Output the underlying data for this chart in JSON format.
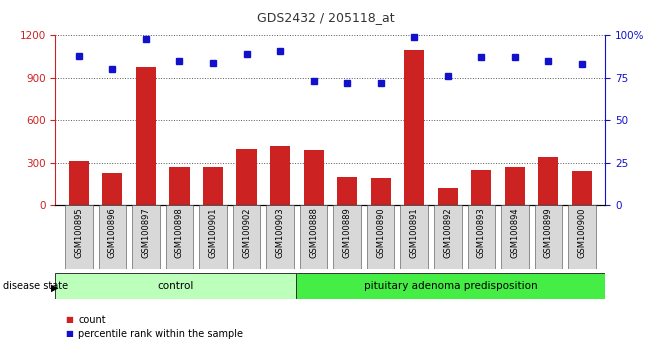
{
  "title": "GDS2432 / 205118_at",
  "samples": [
    "GSM100895",
    "GSM100896",
    "GSM100897",
    "GSM100898",
    "GSM100901",
    "GSM100902",
    "GSM100903",
    "GSM100888",
    "GSM100889",
    "GSM100890",
    "GSM100891",
    "GSM100892",
    "GSM100893",
    "GSM100894",
    "GSM100899",
    "GSM100900"
  ],
  "counts": [
    310,
    230,
    980,
    270,
    270,
    400,
    420,
    390,
    200,
    190,
    1100,
    120,
    250,
    270,
    340,
    240
  ],
  "percentiles": [
    88,
    80,
    98,
    85,
    84,
    89,
    91,
    73,
    72,
    72,
    99,
    76,
    87,
    87,
    85,
    83
  ],
  "control_count": 7,
  "disease_label": "pituitary adenoma predisposition",
  "control_label": "control",
  "ylim_left": [
    0,
    1200
  ],
  "ylim_right": [
    0,
    100
  ],
  "yticks_left": [
    0,
    300,
    600,
    900,
    1200
  ],
  "yticks_right": [
    0,
    25,
    50,
    75,
    100
  ],
  "bar_color": "#cc2222",
  "dot_color": "#1111cc",
  "bg_color": "#d8d8d8",
  "control_bg": "#bbffbb",
  "disease_bg": "#44ee44",
  "legend_count_label": "count",
  "legend_pct_label": "percentile rank within the sample",
  "grid_color": "#555555",
  "title_color": "#333333",
  "title_fontsize": 9,
  "tick_fontsize": 7.5,
  "label_fontsize": 6
}
